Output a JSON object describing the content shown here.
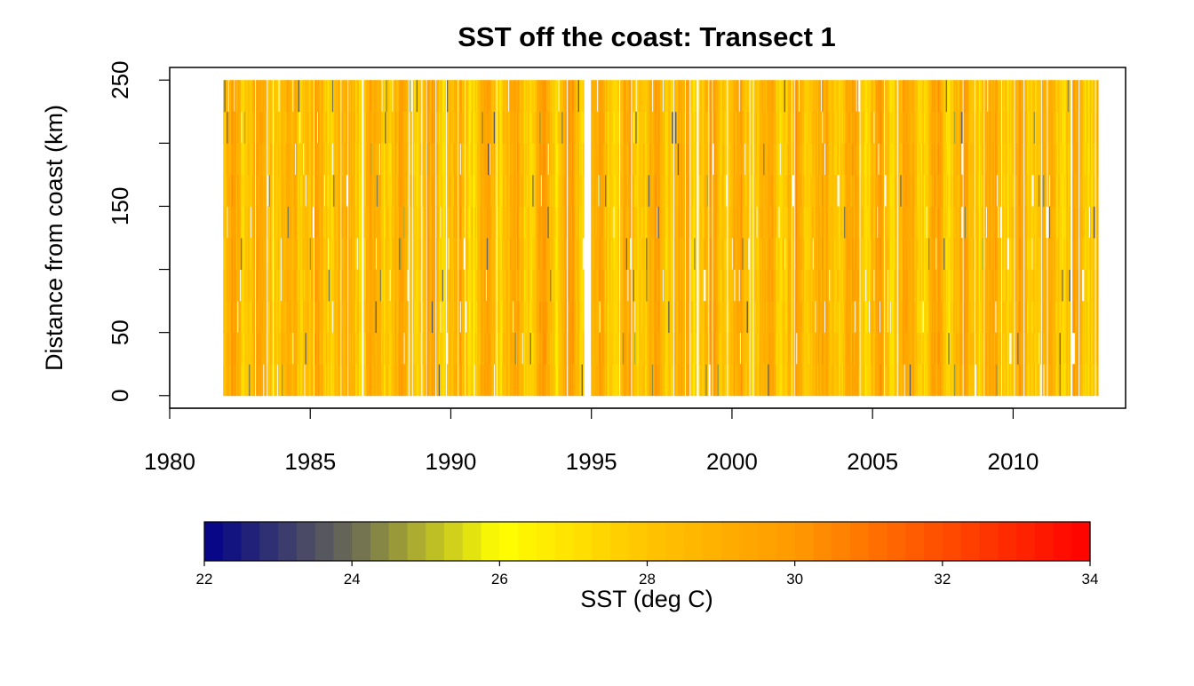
{
  "chart_data": {
    "type": "heatmap",
    "title": "SST off the coast: Transect 1",
    "xlabel": "",
    "ylabel": "Distance from coast (km)",
    "xlim": [
      1980,
      2014
    ],
    "ylim": [
      -10,
      260
    ],
    "x_ticks": [
      "1980",
      "1985",
      "1990",
      "1995",
      "2000",
      "2005",
      "2010"
    ],
    "y_ticks": [
      "0",
      "50",
      "150",
      "250"
    ],
    "y_minor_ticks": [
      100,
      200
    ],
    "data_extent": {
      "x_start": 1981.9,
      "x_end": 2013.0,
      "y_min": 0,
      "y_max": 250
    },
    "missing_periods": [
      [
        1994.75,
        1995.0
      ]
    ],
    "approx_value_range": [
      23.5,
      32.5
    ],
    "typical_value": 28.5,
    "colorbar": {
      "label": "SST (deg C)",
      "range": [
        22,
        34
      ],
      "ticks": [
        "22",
        "24",
        "26",
        "28",
        "30",
        "32",
        "34"
      ],
      "stops": [
        {
          "value": 22,
          "color": "#00008B"
        },
        {
          "value": 24,
          "color": "#6B6B55"
        },
        {
          "value": 26,
          "color": "#FFFF00"
        },
        {
          "value": 28,
          "color": "#FFC400"
        },
        {
          "value": 30,
          "color": "#FF9A00"
        },
        {
          "value": 34,
          "color": "#FF0000"
        }
      ],
      "bins": 48
    },
    "grid": false,
    "legend": "bottom"
  }
}
